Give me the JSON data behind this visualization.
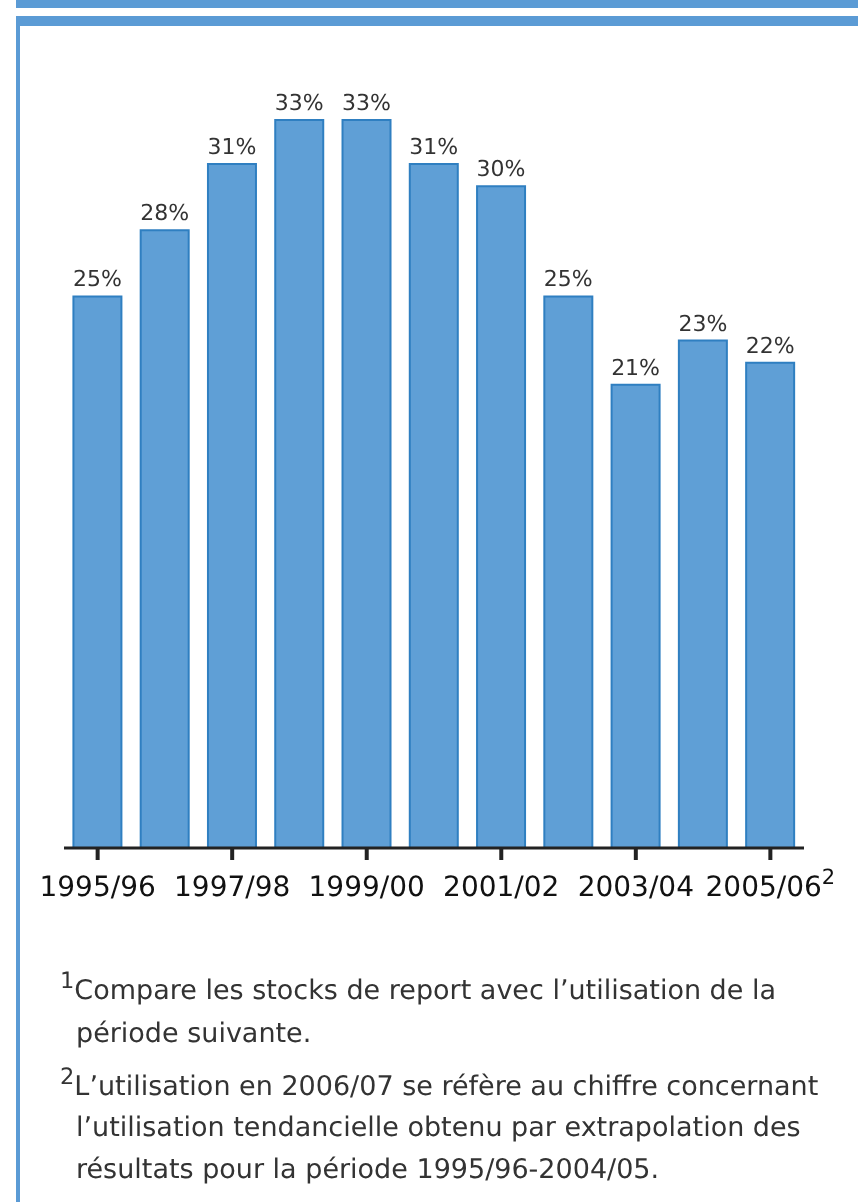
{
  "chart_data": {
    "type": "bar",
    "categories": [
      "1995/96",
      null,
      "1997/98",
      null,
      "1999/00",
      null,
      "2001/02",
      null,
      "2003/04",
      null,
      "2005/06$^{2}$"
    ],
    "values": [
      25,
      28,
      31,
      33,
      33,
      31,
      30,
      25,
      21,
      23,
      22
    ],
    "color": "#5f9fd6",
    "data_labels": true,
    "value_labels": [
      "25%",
      "28%",
      "31%",
      "33%",
      "33%",
      "31%",
      "30%",
      "25%",
      "21%",
      "23%",
      "22%"
    ],
    "annotations": [
      "$^{1}$Compare les stocks de report avec l’utilisation de la période suivante.",
      "$^{2}$L’utilisation  en 2006/07 se réfère au chiffre concernant l’utilisation tendancielle obtenu par extrapolation des résultats pour la période 1995/96-2004/05."
    ]
  }
}
